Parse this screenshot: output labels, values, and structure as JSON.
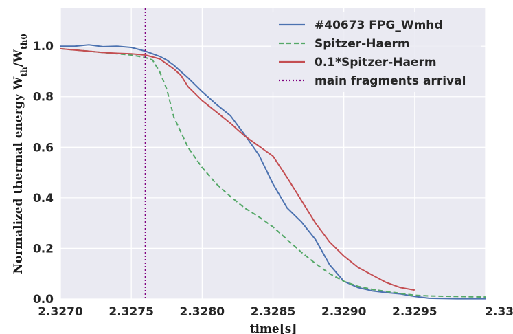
{
  "chart_data": {
    "type": "line",
    "xlabel": "time[s]",
    "ylabel": "Normalized thermal energy W",
    "ylabel_sub1": "th",
    "ylabel_mid": "/W",
    "ylabel_sub2": "th0",
    "xlim": [
      2.327,
      2.33
    ],
    "ylim": [
      0.0,
      1.15
    ],
    "x_ticks": [
      2.327,
      2.3275,
      2.328,
      2.3285,
      2.329,
      2.3295,
      2.33
    ],
    "x_tick_labels": [
      "2.3270",
      "2.3275",
      "2.3280",
      "2.3285",
      "2.3290",
      "2.3295",
      "2.3300"
    ],
    "y_ticks": [
      0.0,
      0.2,
      0.4,
      0.6,
      0.8,
      1.0
    ],
    "y_tick_labels": [
      "0.0",
      "0.2",
      "0.4",
      "0.6",
      "0.8",
      "1.0"
    ],
    "grid": true,
    "legend_position": "top-right",
    "series": [
      {
        "name": "#40673 FPG_Wmhd",
        "color": "#4c72b0",
        "style": "solid",
        "x": [
          2.327,
          2.3271,
          2.3272,
          2.3273,
          2.3274,
          2.3275,
          2.3276,
          2.3277,
          2.32775,
          2.3278,
          2.3279,
          2.328,
          2.3281,
          2.3282,
          2.3283,
          2.3284,
          2.3285,
          2.3286,
          2.3287,
          2.3288,
          2.3289,
          2.329,
          2.3291,
          2.3292,
          2.3293,
          2.3294,
          2.3295,
          2.3296,
          2.3297,
          2.3298,
          2.3299,
          2.33
        ],
        "y": [
          1.0,
          1.0,
          1.005,
          0.998,
          1.0,
          0.995,
          0.98,
          0.96,
          0.945,
          0.925,
          0.875,
          0.82,
          0.77,
          0.725,
          0.65,
          0.57,
          0.455,
          0.36,
          0.305,
          0.235,
          0.135,
          0.07,
          0.045,
          0.032,
          0.025,
          0.02,
          0.01,
          0.003,
          0.002,
          0.001,
          0.001,
          0.001
        ]
      },
      {
        "name": "Spitzer-Haerm",
        "color": "#55a868",
        "style": "dashed",
        "x": [
          2.327,
          2.3271,
          2.3272,
          2.3273,
          2.3274,
          2.3275,
          2.3276,
          2.32765,
          2.3277,
          2.32775,
          2.3278,
          2.3279,
          2.328,
          2.3281,
          2.3282,
          2.3283,
          2.3284,
          2.3285,
          2.3286,
          2.3287,
          2.3288,
          2.3289,
          2.329,
          2.3291,
          2.3292,
          2.3293,
          2.3294,
          2.3295,
          2.3296,
          2.3297,
          2.3298,
          2.3299,
          2.33
        ],
        "y": [
          0.99,
          0.985,
          0.98,
          0.975,
          0.97,
          0.965,
          0.955,
          0.945,
          0.9,
          0.83,
          0.72,
          0.6,
          0.52,
          0.455,
          0.405,
          0.36,
          0.325,
          0.285,
          0.235,
          0.185,
          0.14,
          0.1,
          0.07,
          0.05,
          0.038,
          0.03,
          0.022,
          0.015,
          0.012,
          0.011,
          0.01,
          0.009,
          0.008
        ]
      },
      {
        "name": "0.1*Spitzer-Haerm",
        "color": "#c44e52",
        "style": "solid",
        "x": [
          2.327,
          2.3271,
          2.3272,
          2.3273,
          2.3274,
          2.3275,
          2.3276,
          2.3277,
          2.3278,
          2.32785,
          2.3279,
          2.328,
          2.3281,
          2.3282,
          2.3283,
          2.3284,
          2.3285,
          2.3286,
          2.3287,
          2.3288,
          2.3289,
          2.329,
          2.3291,
          2.3292,
          2.3293,
          2.3294,
          2.3295
        ],
        "y": [
          0.99,
          0.985,
          0.98,
          0.975,
          0.972,
          0.97,
          0.965,
          0.95,
          0.91,
          0.885,
          0.84,
          0.785,
          0.74,
          0.695,
          0.645,
          0.605,
          0.565,
          0.48,
          0.39,
          0.3,
          0.225,
          0.17,
          0.125,
          0.095,
          0.065,
          0.045,
          0.035
        ]
      },
      {
        "name": "main fragments arrival",
        "color": "#800080",
        "style": "dotted",
        "vline_x": 2.3276
      }
    ]
  }
}
